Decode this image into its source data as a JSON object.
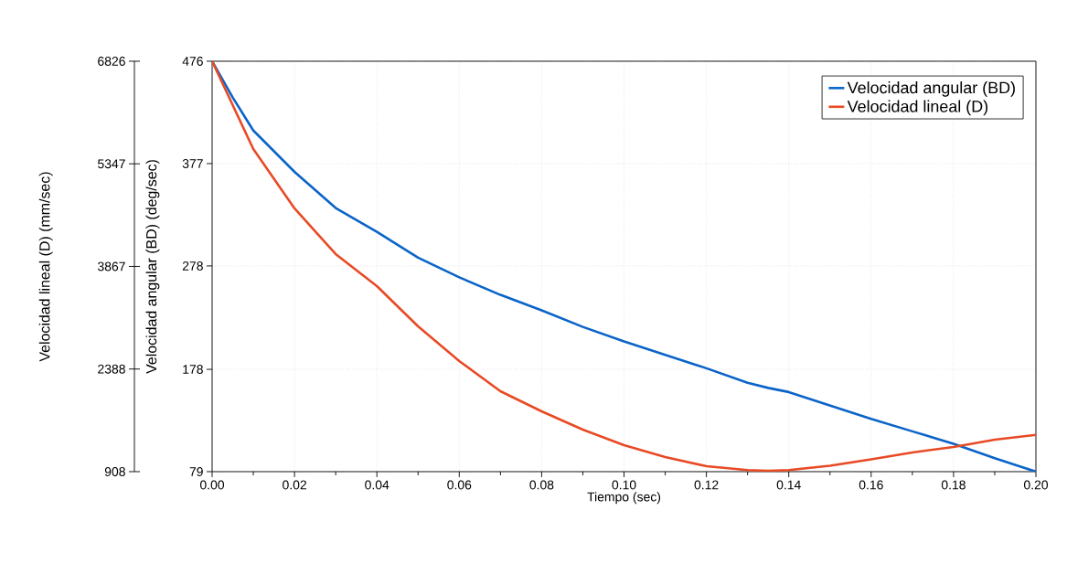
{
  "chart_data": {
    "type": "line",
    "xlabel": "Tiempo (sec)",
    "ylabel": "Velocidad lineal (D) (mm/sec)",
    "y2label": "Velocidad angular (BD) (deg/sec)",
    "x": [
      0,
      0.005,
      0.01,
      0.02,
      0.03,
      0.04,
      0.05,
      0.06,
      0.07,
      0.08,
      0.09,
      0.1,
      0.11,
      0.12,
      0.13,
      0.135,
      0.14,
      0.15,
      0.16,
      0.17,
      0.18,
      0.19,
      0.2
    ],
    "xlim": [
      0,
      0.2
    ],
    "xticks": [
      {
        "value": 0,
        "label": "0.00"
      },
      {
        "value": 0.02,
        "label": "0.02"
      },
      {
        "value": 0.04,
        "label": "0.04"
      },
      {
        "value": 0.06,
        "label": "0.06"
      },
      {
        "value": 0.08,
        "label": "0.08"
      },
      {
        "value": 0.1,
        "label": "0.10"
      },
      {
        "value": 0.12,
        "label": "0.12"
      },
      {
        "value": 0.14,
        "label": "0.14"
      },
      {
        "value": 0.16,
        "label": "0.16"
      },
      {
        "value": 0.18,
        "label": "0.18"
      },
      {
        "value": 0.2,
        "label": "0.20"
      }
    ],
    "ylim": [
      908,
      6826
    ],
    "yticks": [
      908,
      2388,
      3867,
      5347,
      6826
    ],
    "y2lim": [
      79,
      476
    ],
    "y2ticks": [
      79,
      178,
      278,
      377,
      476
    ],
    "grid": true,
    "legend": "top right",
    "series": [
      {
        "name": "Velocidad angular (BD)",
        "color": "#0a64c8",
        "axis": "y2",
        "values": [
          476,
          441,
          409,
          369,
          334,
          311,
          286,
          267,
          250,
          235,
          219,
          205,
          192,
          179,
          165,
          160,
          156,
          143,
          130,
          118,
          106,
          92,
          79
        ]
      },
      {
        "name": "Velocidad lineal (D)",
        "color": "#e84a25",
        "values": [
          6826,
          6193,
          5561,
          4704,
          4045,
          3584,
          3004,
          2503,
          2068,
          1778,
          1514,
          1290,
          1119,
          987,
          930,
          920,
          930,
          993,
          1086,
          1185,
          1264,
          1370,
          1439
        ]
      }
    ]
  }
}
